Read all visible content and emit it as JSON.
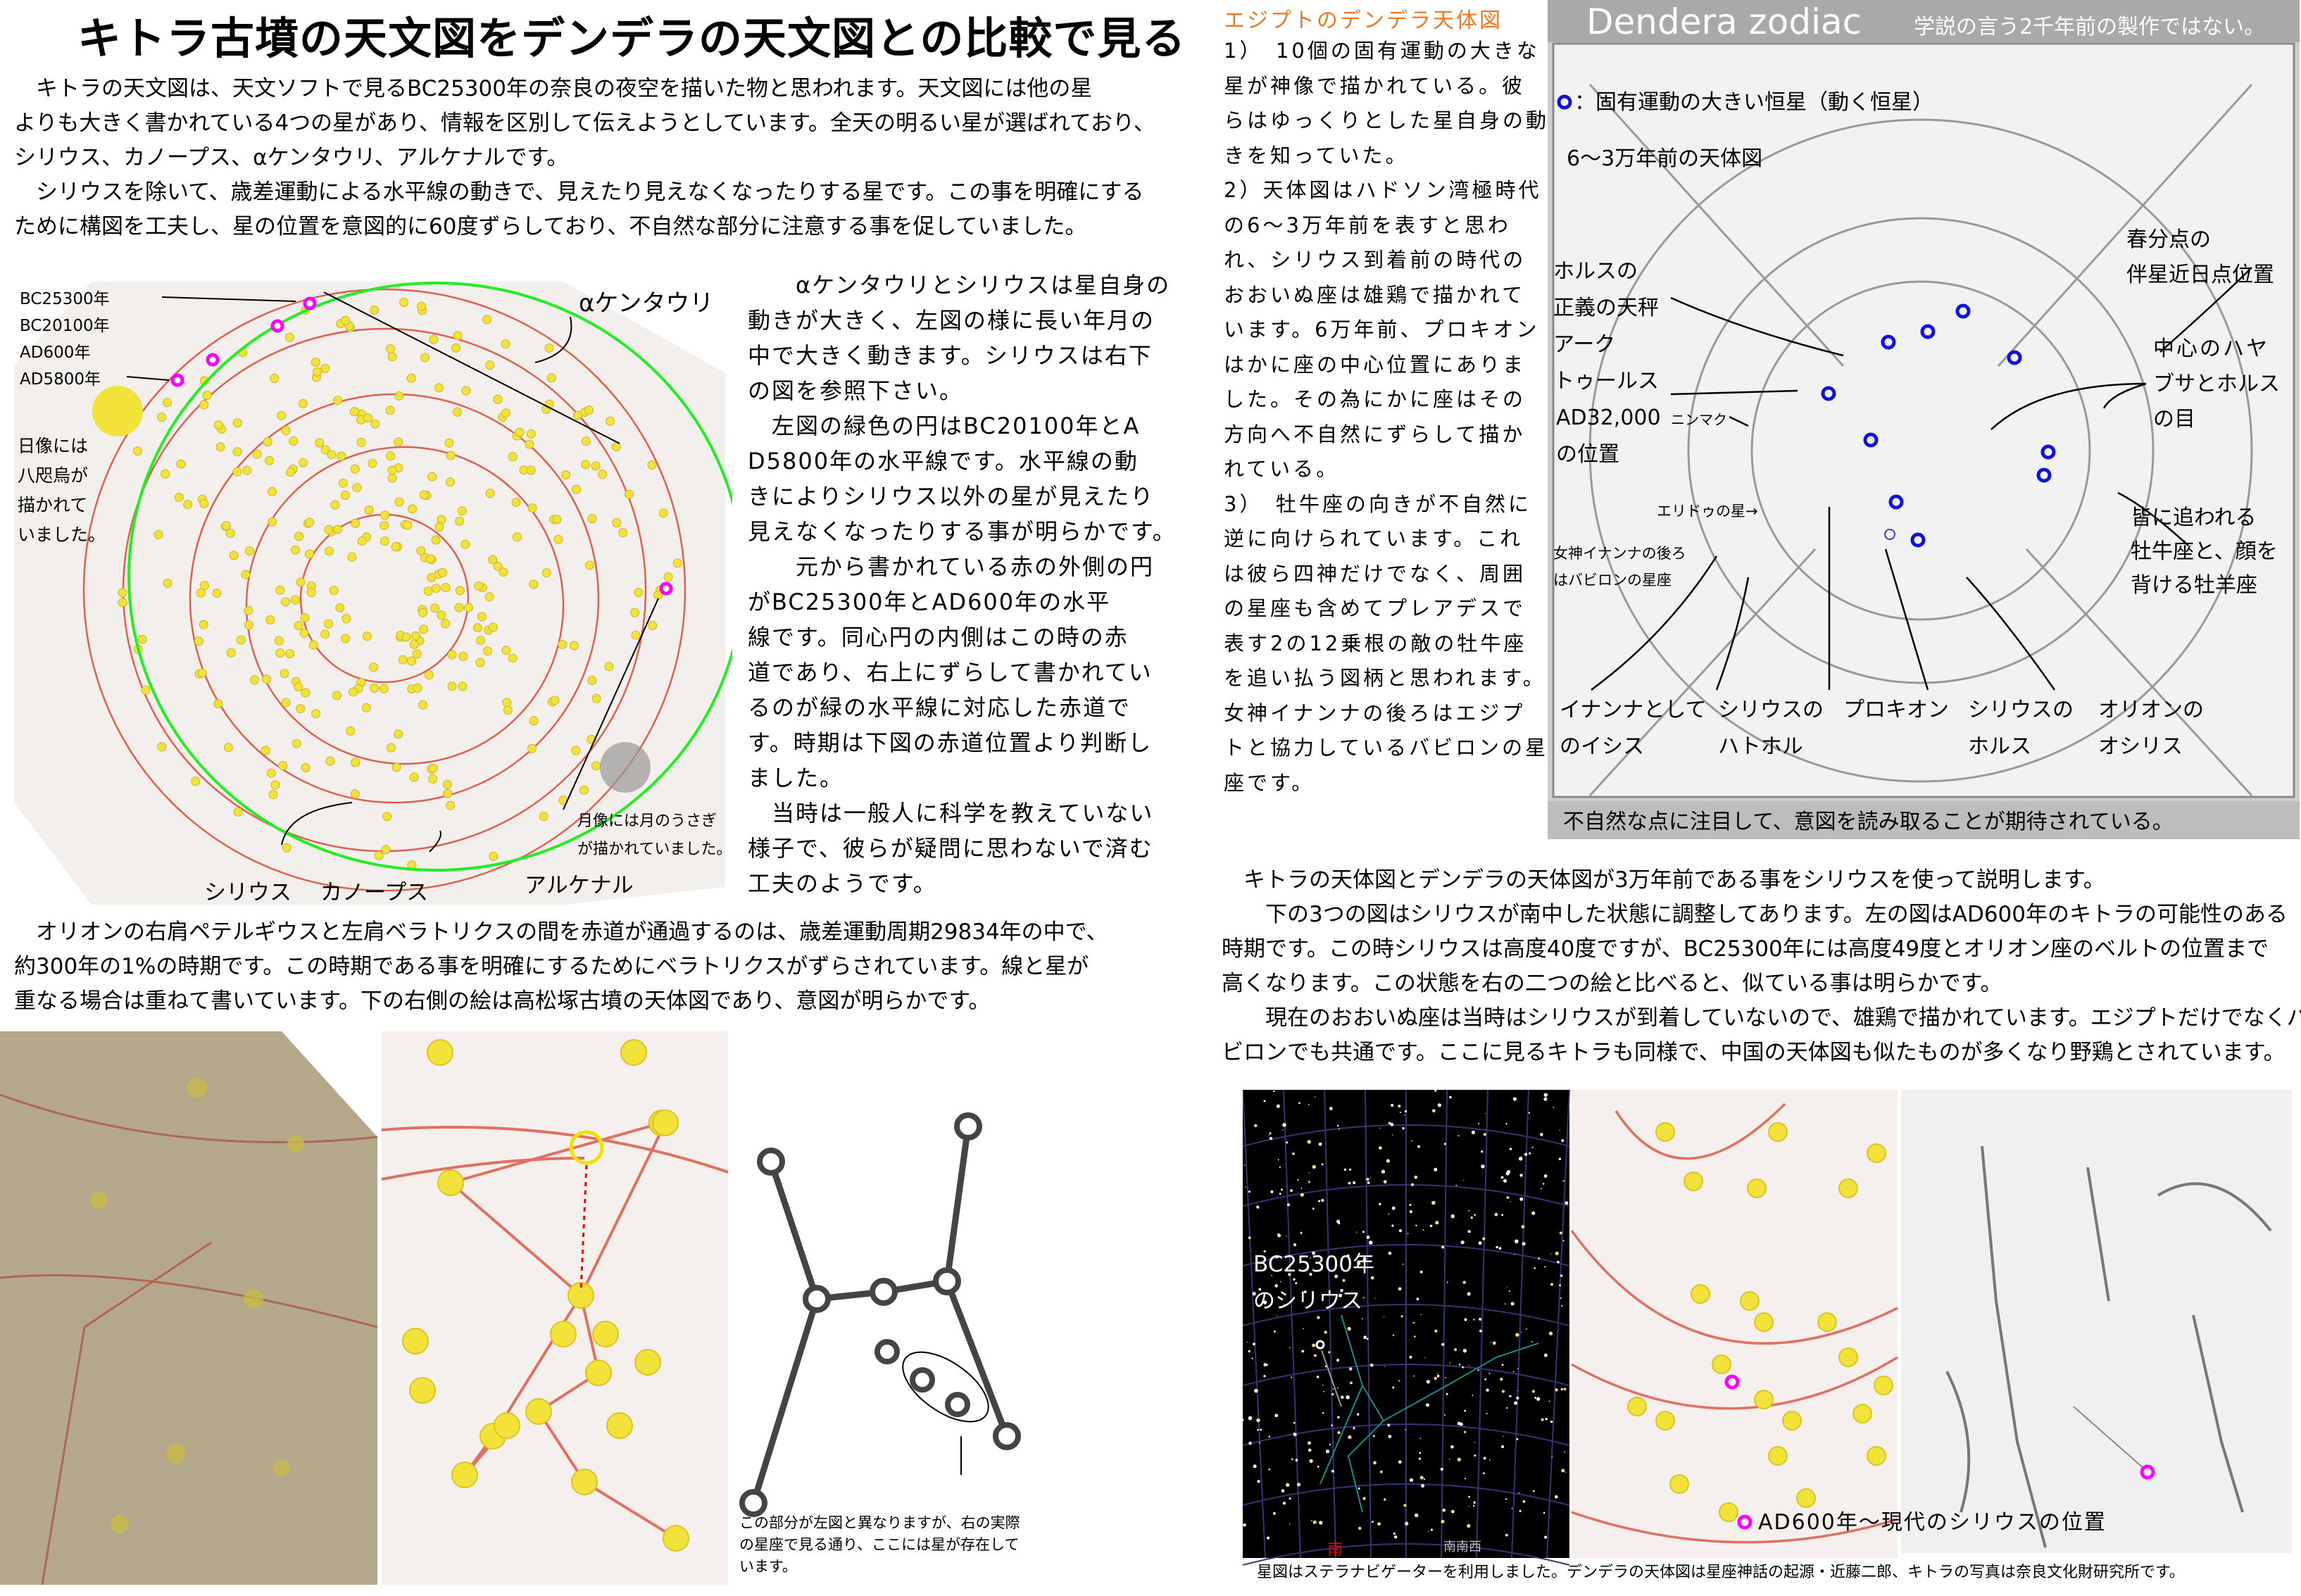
{
  "title": "キトラ古墳の天文図をデンデラの天文図との比較で見る",
  "intro": [
    "　キトラの天文図は、天文ソフトで見るBC25300年の奈良の夜空を描いた物と思われます。天文図には他の星",
    "よりも大きく書かれている4つの星があり、情報を区別して伝えようとしています。全天の明るい星が選ばれており、",
    "シリウス、カノープス、αケンタウリ、アルケナルです。",
    "　シリウスを除いて、歳差運動による水平線の動きで、見えたり見えなくなったりする星です。この事を明確にする",
    "ために構図を工夫し、星の位置を意図的に60度ずらしており、不自然な部分に注意する事を促していました。"
  ],
  "kitora_chart": {
    "year_labels": [
      "BC25300年",
      "BC20100年",
      "AD600年",
      "AD5800年"
    ],
    "alpha_centauri": "αケンタウリ",
    "sun_note": [
      "日像には",
      "八咫烏が",
      "描かれて",
      "いました。"
    ],
    "moon_note": [
      "月像には月のうさぎ",
      "が描かれていました。"
    ],
    "sirius": "シリウス",
    "canopus": "カノープス",
    "achernar": "アルケナル",
    "colors": {
      "ring": "#e06050",
      "green": "#22ee22",
      "star": "#f2e23a",
      "marker": "#ff00ff",
      "paper": "#f3efec"
    }
  },
  "middle_text": [
    "　　αケンタウリとシリウスは星自身の",
    "動きが大きく、左図の様に長い年月の",
    "中で大きく動きます。シリウスは右下",
    "の図を参照下さい。",
    "　左図の緑色の円はBC20100年とA",
    "D5800年の水平線です。水平線の動",
    "きによりシリウス以外の星が見えたり",
    "見えなくなったりする事が明らかです。",
    "　　元から書かれている赤の外側の円",
    "がBC25300年とAD600年の水平",
    "線です。同心円の内側はこの時の赤",
    "道であり、右上にずらして書かれてい",
    "るのが緑の水平線に対応した赤道で",
    "す。時期は下図の赤道位置より判断し",
    "ました。",
    "　当時は一般人に科学を教えていない",
    "様子で、彼らが疑問に思わないで済む",
    "工夫のようです。"
  ],
  "orion_text": [
    "　オリオンの右肩ペテルギウスと左肩ベラトリクスの間を赤道が通過するのは、歳差運動周期29834年の中で、",
    "約300年の1%の時期です。この時期である事を明確にするためにベラトリクスがずらされています。線と星が",
    "重なる場合は重ねて書いています。下の右側の絵は高松塚古墳の天体図であり、意図が明らかです。"
  ],
  "orion_caption": [
    "この部分が左図と異なりますが、右の実際",
    "の星座で見る通り、ここには星が存在して",
    "います。"
  ],
  "egypt": {
    "heading": "エジプトのデンデラ天体図",
    "heading_color": "#f07820",
    "lines": [
      "1）　10個の固有運動の大きな",
      "星が神像で描かれている。彼",
      "らはゆっくりとした星自身の動",
      "きを知っていた。",
      "2）天体図はハドソン湾極時代",
      "の6～3万年前を表すと思わ",
      "れ、シリウス到着前の時代の",
      "おおいぬ座は雄鶏で描かれて",
      "います。6万年前、プロキオン",
      "はかに座の中心位置にありま",
      "した。その為にかに座はその",
      "方向へ不自然にずらして描か",
      "れている。",
      "3）　牡牛座の向きが不自然に",
      "逆に向けられています。これ",
      "は彼ら四神だけでなく、周囲",
      "の星座も含めてプレアデスで",
      "表す2の12乗根の敵の牡牛座",
      "を追い払う図柄と思われます。",
      "女神イナンナの後ろはエジプ",
      "トと協力しているバビロンの星",
      "座です。"
    ]
  },
  "dendera": {
    "header": "Dendera zodiac",
    "header_sub": "学説の言う2千年前の製作ではない。",
    "legend": "：固有運動の大きい恒星（動く恒星）",
    "era": "6～3万年前の天体図",
    "horus_scale": [
      "ホルスの",
      "正義の天秤",
      "アーク",
      "トゥールス",
      "AD32,000",
      "の位置"
    ],
    "ninmaku": "ニンマク",
    "equinox": [
      "春分点の",
      "伴星近日点位置"
    ],
    "falcon": [
      "中心のハヤ",
      "ブサとホルス",
      "の目"
    ],
    "eridu": "エリドゥの星→",
    "inanna_back": [
      "女神イナンナの後ろ",
      "はバビロンの星座"
    ],
    "taurus": [
      "皆に追われる",
      "牡牛座と、顔を",
      "背ける牡羊座"
    ],
    "bottom_labels": [
      [
        "イナンナとして",
        "のイシス"
      ],
      [
        "シリウスの",
        "ハトホル"
      ],
      [
        "プロキオン",
        ""
      ],
      [
        "シリウスの",
        "ホルス"
      ],
      [
        "オリオンの",
        "オシリス"
      ]
    ],
    "footer": "不自然な点に注目して、意図を読み取ることが期待されている。",
    "marker_color": "#1010e0"
  },
  "sirius_text": [
    "　キトラの天体図とデンデラの天体図が3万年前である事をシリウスを使って説明します。",
    "　　下の3つの図はシリウスが南中した状態に調整してあります。左の図はAD600年のキトラの可能性のある",
    "時期です。この時シリウスは高度40度ですが、BC25300年には高度49度とオリオン座のベルトの位置まで",
    "高くなります。この状態を右の二つの絵と比べると、似ている事は明らかです。",
    "　　現在のおおいぬ座は当時はシリウスが到着していないので、雄鶏で描かれています。エジプトだけでなくバ",
    "ビロンでも共通です。ここに見るキトラも同様で、中国の天体図も似たものが多くなり野鶏とされています。"
  ],
  "starmap": {
    "sirius_label": [
      "BC25300年",
      "のシリウス"
    ],
    "south": "南",
    "ssw": "南南西"
  },
  "legend_ad600": "AD600年～現代のシリウスの位置",
  "credits": "星図はステラナビゲーターを利用しました。デンデラの天体図は星座神話の起源・近藤二郎、キトラの写真は奈良文化財研究所です。"
}
